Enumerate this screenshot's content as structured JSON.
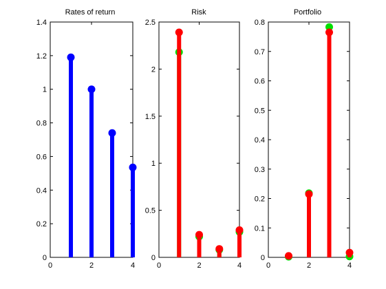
{
  "figure": {
    "background": "#ffffff",
    "axis_color": "#000000"
  },
  "chart_data": [
    {
      "type": "stem",
      "title": "Rates of return",
      "xlabel": "",
      "ylabel": "",
      "xlim": [
        0,
        4
      ],
      "ylim": [
        0,
        1.4
      ],
      "xticks": [
        "0",
        "2",
        "4"
      ],
      "yticks": [
        "0",
        "0.2",
        "0.4",
        "0.6",
        "0.8",
        "1",
        "1.2",
        "1.4"
      ],
      "grid": false,
      "series": [
        {
          "color": "#0000ff",
          "x": [
            1,
            2,
            3,
            4
          ],
          "values": [
            1.19,
            1.0,
            0.74,
            0.535
          ]
        }
      ]
    },
    {
      "type": "stem",
      "title": "Risk",
      "xlabel": "",
      "ylabel": "",
      "xlim": [
        0,
        4
      ],
      "ylim": [
        0,
        2.5
      ],
      "xticks": [
        "0",
        "2",
        "4"
      ],
      "yticks": [
        "0",
        "0.5",
        "1",
        "1.5",
        "2",
        "2.5"
      ],
      "grid": false,
      "series": [
        {
          "color": "#00e000",
          "x": [
            1,
            2,
            3,
            4
          ],
          "values": [
            2.18,
            0.22,
            0.08,
            0.27
          ]
        },
        {
          "color": "#ff0000",
          "x": [
            1,
            2,
            3,
            4
          ],
          "values": [
            2.39,
            0.24,
            0.09,
            0.29
          ]
        }
      ]
    },
    {
      "type": "stem",
      "title": "Portfolio",
      "xlabel": "",
      "ylabel": "",
      "xlim": [
        0,
        4
      ],
      "ylim": [
        0,
        0.8
      ],
      "xticks": [
        "0",
        "2",
        "4"
      ],
      "yticks": [
        "0",
        "0.1",
        "0.2",
        "0.3",
        "0.4",
        "0.5",
        "0.6",
        "0.7",
        "0.8"
      ],
      "grid": false,
      "series": [
        {
          "color": "#00e000",
          "x": [
            1,
            2,
            3,
            4
          ],
          "values": [
            0.002,
            0.218,
            0.783,
            0.003
          ]
        },
        {
          "color": "#ff0000",
          "x": [
            1,
            2,
            3,
            4
          ],
          "values": [
            0.005,
            0.215,
            0.765,
            0.016
          ]
        }
      ]
    }
  ]
}
